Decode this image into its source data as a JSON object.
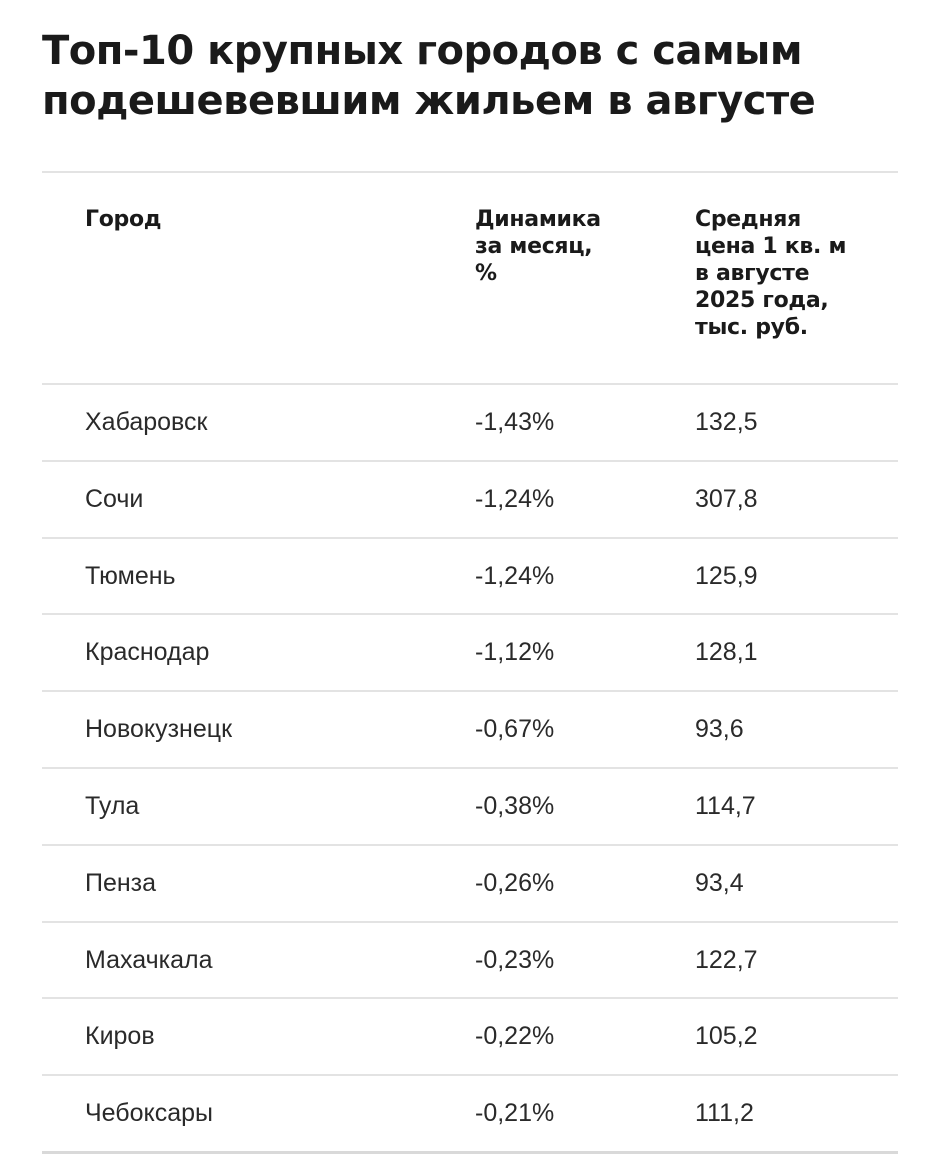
{
  "title": {
    "line1": "Топ-10 крупных городов с самым",
    "line2": "подешевевшим жильем в августе"
  },
  "table": {
    "headers": {
      "city": "Город",
      "dynamics": [
        "Динамика",
        "за месяц,",
        "%"
      ],
      "price": [
        "Средняя",
        "цена 1 кв. м",
        "в августе",
        "2025 года,",
        "тыс. руб."
      ]
    },
    "rows": [
      {
        "city": "Хабаровск",
        "dynamics": "-1,43%",
        "price": "132,5"
      },
      {
        "city": "Сочи",
        "dynamics": "-1,24%",
        "price": "307,8"
      },
      {
        "city": "Тюмень",
        "dynamics": "-1,24%",
        "price": "125,9"
      },
      {
        "city": "Краснодар",
        "dynamics": "-1,12%",
        "price": "128,1"
      },
      {
        "city": "Новокузнецк",
        "dynamics": "-0,67%",
        "price": "93,6"
      },
      {
        "city": "Тула",
        "dynamics": "-0,38%",
        "price": "114,7"
      },
      {
        "city": "Пенза",
        "dynamics": "-0,26%",
        "price": "93,4"
      },
      {
        "city": "Махачкала",
        "dynamics": "-0,23%",
        "price": "122,7"
      },
      {
        "city": "Киров",
        "dynamics": "-0,22%",
        "price": "105,2"
      },
      {
        "city": "Чебоксары",
        "dynamics": "-0,21%",
        "price": "111,2"
      }
    ]
  }
}
